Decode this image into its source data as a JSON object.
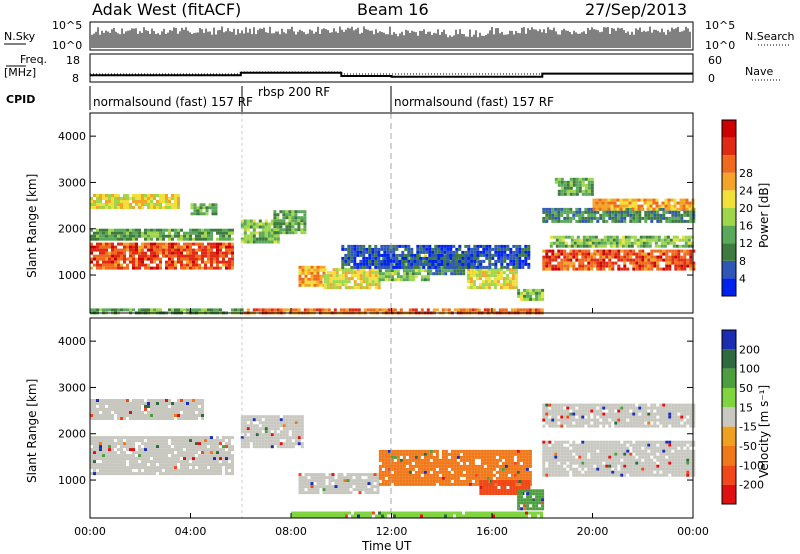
{
  "header": {
    "station": "Adak West (fitACF)",
    "beam": "Beam 16",
    "date": "27/Sep/2013"
  },
  "strip_panels": {
    "nsky": {
      "label": "N.Sky",
      "ticks": [
        "10^5",
        "10^0"
      ],
      "right_label": "N.Search",
      "right_ticks": [
        "10^5",
        "10^0"
      ]
    },
    "freq": {
      "label_line1": "Freq.",
      "label_line2": "[MHz]",
      "ticks": [
        "18",
        "8"
      ],
      "right_label": "Nave",
      "right_ticks": [
        "60",
        "0"
      ]
    },
    "cpid": {
      "label": "CPID",
      "programs": [
        {
          "name": "normalsound (fast) 157 RF",
          "start_h": 0,
          "end_h": 6
        },
        {
          "name": "rbsp 200 RF",
          "start_h": 6,
          "end_h": 12
        },
        {
          "name": "normalsound (fast) 157 RF",
          "start_h": 12,
          "end_h": 24
        }
      ]
    }
  },
  "x_axis": {
    "label": "Time UT",
    "ticks": [
      "00:00",
      "04:00",
      "08:00",
      "12:00",
      "16:00",
      "20:00",
      "00:00"
    ]
  },
  "power_panel": {
    "ylabel": "Slant Range [km]",
    "cbar_label": "Power [dB]",
    "cbar_ticks": [
      "4",
      "8",
      "12",
      "16",
      "20",
      "24",
      "28"
    ],
    "cbar_colors": [
      "#0022ee",
      "#2f57b8",
      "#3f7b3f",
      "#5aa85a",
      "#9fd64a",
      "#f2e03a",
      "#f3a52a",
      "#ef6a1c",
      "#e02a14",
      "#cc0000"
    ]
  },
  "velocity_panel": {
    "ylabel": "Slant Range [km]",
    "cbar_label": "Velocity [m s⁻¹]",
    "cbar_ticks": [
      "200",
      "100",
      "50",
      "15",
      "-15",
      "-50",
      "-100",
      "-200"
    ],
    "cbar_colors": [
      "#1a2db3",
      "#2e6a3f",
      "#4d9e3f",
      "#7fd43f",
      "#c8c8c0",
      "#f0a020",
      "#f07818",
      "#f04818",
      "#e01010"
    ]
  },
  "chart_data": {
    "type": "heatmap",
    "title": "Adak West (fitACF) Beam 16 27/Sep/2013",
    "xlabel": "Time UT",
    "ylabel": "Slant Range [km]",
    "x_range_hours": [
      0,
      24
    ],
    "y_range_km": [
      180,
      4500
    ],
    "y_ticks_km": [
      1000,
      2000,
      3000,
      4000
    ],
    "grid": false,
    "frequency_mhz": [
      {
        "start_h": 0,
        "end_h": 6,
        "value": 11
      },
      {
        "start_h": 6,
        "end_h": 10,
        "value": 12.5
      },
      {
        "start_h": 10,
        "end_h": 12,
        "value": 10.5
      },
      {
        "start_h": 12,
        "end_h": 18,
        "value": 10
      },
      {
        "start_h": 18,
        "end_h": 24,
        "value": 12
      }
    ],
    "nave": [
      {
        "start_h": 0,
        "end_h": 6,
        "value": 15
      },
      {
        "start_h": 6,
        "end_h": 10,
        "value": 20
      },
      {
        "start_h": 10,
        "end_h": 12,
        "value": 15
      },
      {
        "start_h": 12,
        "end_h": 18,
        "value": 15
      },
      {
        "start_h": 18,
        "end_h": 24,
        "value": 15
      }
    ],
    "power_regions": [
      {
        "t0": 0.0,
        "t1": 5.7,
        "r0": 1150,
        "r1": 1700,
        "power_db": 26
      },
      {
        "t0": 0.0,
        "t1": 5.7,
        "r0": 1750,
        "r1": 2000,
        "power_db": 12
      },
      {
        "t0": 0.0,
        "t1": 3.5,
        "r0": 2450,
        "r1": 2750,
        "power_db": 18
      },
      {
        "t0": 4.0,
        "t1": 5.0,
        "r0": 2300,
        "r1": 2550,
        "power_db": 12
      },
      {
        "t0": 6.0,
        "t1": 7.5,
        "r0": 1700,
        "r1": 2200,
        "power_db": 14
      },
      {
        "t0": 7.3,
        "t1": 8.5,
        "r0": 1900,
        "r1": 2400,
        "power_db": 12
      },
      {
        "t0": 8.3,
        "t1": 9.3,
        "r0": 750,
        "r1": 1200,
        "power_db": 22
      },
      {
        "t0": 9.3,
        "t1": 11.5,
        "r0": 700,
        "r1": 1150,
        "power_db": 18
      },
      {
        "t0": 11.5,
        "t1": 13.5,
        "r0": 900,
        "r1": 1450,
        "power_db": 14
      },
      {
        "t0": 13.5,
        "t1": 15.5,
        "r0": 1000,
        "r1": 1450,
        "power_db": 10
      },
      {
        "t0": 15.0,
        "t1": 17.0,
        "r0": 750,
        "r1": 1150,
        "power_db": 18
      },
      {
        "t0": 17.0,
        "t1": 18.0,
        "r0": 450,
        "r1": 700,
        "power_db": 14
      },
      {
        "t0": 18.0,
        "t1": 24.0,
        "r0": 1100,
        "r1": 1550,
        "power_db": 26
      },
      {
        "t0": 18.3,
        "t1": 24.0,
        "r0": 1600,
        "r1": 1850,
        "power_db": 14
      },
      {
        "t0": 18.0,
        "t1": 24.0,
        "r0": 2150,
        "r1": 2450,
        "power_db": 10
      },
      {
        "t0": 20.0,
        "t1": 24.0,
        "r0": 2450,
        "r1": 2650,
        "power_db": 22
      },
      {
        "t0": 18.5,
        "t1": 20.0,
        "r0": 2750,
        "r1": 3100,
        "power_db": 12
      },
      {
        "t0": 6.0,
        "t1": 18.0,
        "r0": 200,
        "r1": 280,
        "power_db": 24
      },
      {
        "t0": 0.0,
        "t1": 6.0,
        "r0": 200,
        "r1": 280,
        "power_db": 12
      },
      {
        "t0": 10.0,
        "t1": 17.5,
        "r0": 1150,
        "r1": 1650,
        "power_db": 6
      }
    ],
    "velocity_regions": [
      {
        "t0": 0.0,
        "t1": 5.7,
        "r0": 1150,
        "r1": 1950,
        "velocity": 0
      },
      {
        "t0": 0.0,
        "t1": 4.5,
        "r0": 2350,
        "r1": 2750,
        "velocity": 0
      },
      {
        "t0": 6.0,
        "t1": 8.5,
        "r0": 1700,
        "r1": 2400,
        "velocity": 0
      },
      {
        "t0": 8.3,
        "t1": 11.5,
        "r0": 700,
        "r1": 1150,
        "velocity": 0
      },
      {
        "t0": 11.5,
        "t1": 17.5,
        "r0": 900,
        "r1": 1650,
        "velocity": -40
      },
      {
        "t0": 15.5,
        "t1": 17.5,
        "r0": 700,
        "r1": 1000,
        "velocity": -80
      },
      {
        "t0": 17.0,
        "t1": 18.0,
        "r0": 400,
        "r1": 800,
        "velocity": 40
      },
      {
        "t0": 18.0,
        "t1": 24.0,
        "r0": 1100,
        "r1": 1850,
        "velocity": 0
      },
      {
        "t0": 18.0,
        "t1": 24.0,
        "r0": 2150,
        "r1": 2650,
        "velocity": 0
      },
      {
        "t0": 8.0,
        "t1": 18.0,
        "r0": 200,
        "r1": 320,
        "velocity": 30
      }
    ]
  }
}
